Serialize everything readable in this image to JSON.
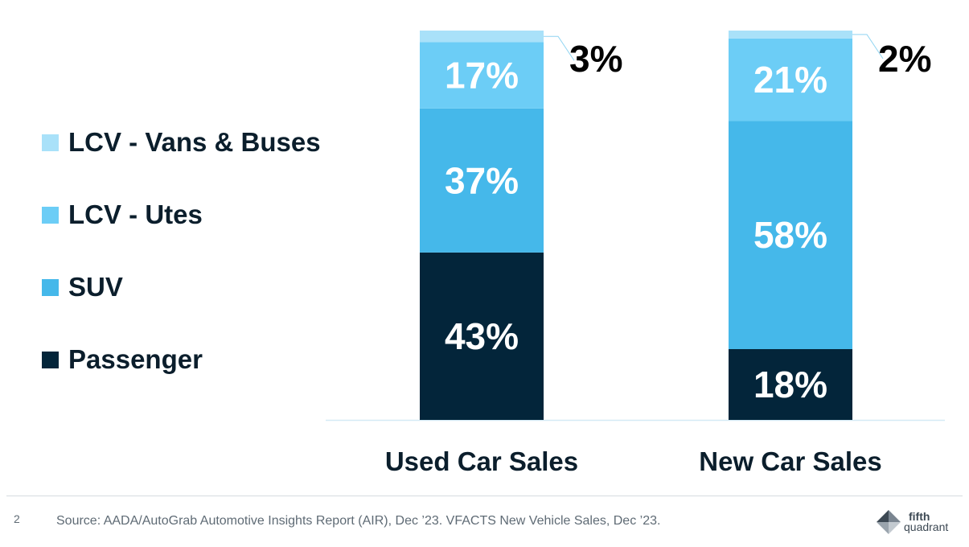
{
  "chart_data": {
    "type": "bar",
    "stacked": true,
    "percent": true,
    "categories": [
      "Used Car Sales",
      "New Car Sales"
    ],
    "series": [
      {
        "name": "Passenger",
        "values": [
          43,
          18
        ],
        "color": "#03253a",
        "labels": [
          "43%",
          "18%"
        ]
      },
      {
        "name": "SUV",
        "values": [
          37,
          58
        ],
        "color": "#45b8ea",
        "labels": [
          "37%",
          "58%"
        ]
      },
      {
        "name": "LCV - Utes",
        "values": [
          17,
          21
        ],
        "color": "#6ccdf6",
        "labels": [
          "17%",
          "21%"
        ]
      },
      {
        "name": "LCV - Vans & Buses",
        "values": [
          3,
          2
        ],
        "color": "#a9e1f9",
        "labels": [
          "3%",
          "2%"
        ]
      }
    ],
    "legend_position": "left",
    "grid": false,
    "ylim": [
      0,
      100
    ],
    "title": "",
    "xlabel": "",
    "ylabel": ""
  },
  "footer": {
    "page_number": "2",
    "source": "Source: AADA/AutoGrab Automotive Insights Report (AIR), Dec ’23. VFACTS New Vehicle Sales, Dec ’23.",
    "logo_line1": "fifth",
    "logo_line2": "quadrant"
  }
}
